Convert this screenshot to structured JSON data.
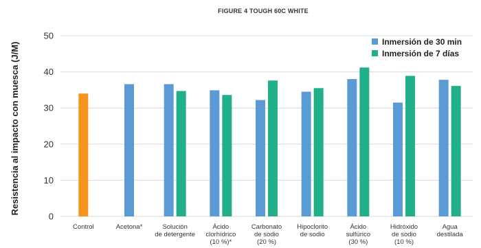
{
  "chart_data": {
    "type": "bar",
    "title": "FIGURE 4 TOUGH 60C WHITE",
    "ylabel": "Resistencia al impacto con muesca (J/M)",
    "xlabel": "",
    "ylim": [
      0,
      50
    ],
    "yticks": [
      0,
      10,
      20,
      30,
      40,
      50
    ],
    "grid": true,
    "legend_position": "top-right",
    "categories": [
      [
        "Control"
      ],
      [
        "Acetona*"
      ],
      [
        "Solución",
        "de detergente"
      ],
      [
        "Ácido",
        "clorhídrico",
        "(10 %)*"
      ],
      [
        "Carbonato",
        "de sodio",
        "(20 %)"
      ],
      [
        "Hipoclorito",
        "de sodio"
      ],
      [
        "Ácido",
        "sulfúrico",
        "(30 %)"
      ],
      [
        "Hidróxido",
        "de sodio",
        "(10 %)"
      ],
      [
        "Agua",
        "destilada"
      ]
    ],
    "control": {
      "value": 34.0,
      "color": "#f7941d"
    },
    "series": [
      {
        "name": "Inmersión de 30 min",
        "color": "#5b9bd5",
        "values": [
          null,
          36.6,
          36.6,
          34.9,
          32.2,
          34.5,
          38.0,
          31.5,
          37.8
        ]
      },
      {
        "name": "Inmersión de 7 días",
        "color": "#21b08a",
        "values": [
          null,
          null,
          34.7,
          33.6,
          37.6,
          35.5,
          41.2,
          38.9,
          36.1
        ]
      }
    ]
  }
}
